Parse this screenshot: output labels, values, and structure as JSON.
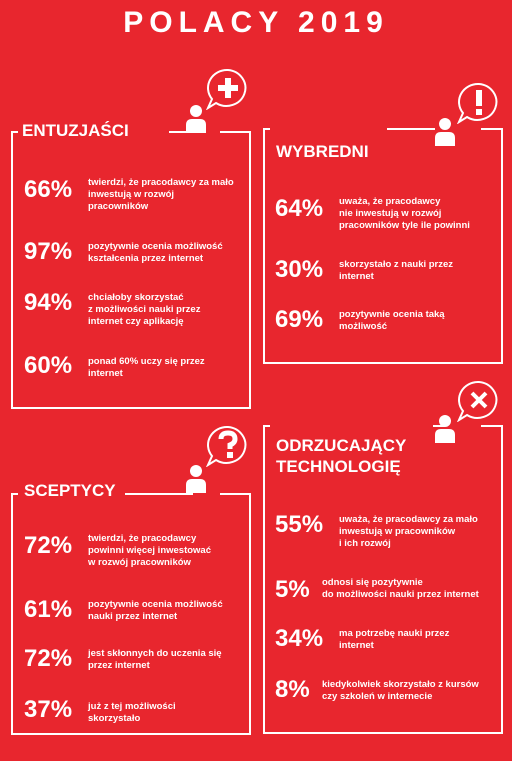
{
  "title": "POLACY 2019",
  "groups": [
    {
      "name": "ENTUZJAŚCI",
      "icon": "plus-icon",
      "items": [
        {
          "pct": "66%",
          "text": "twierdzi, że pracodawcy za mało\ninwestują w rozwój\npracowników"
        },
        {
          "pct": "97%",
          "text": "pozytywnie ocenia możliwość\nkształcenia przez internet"
        },
        {
          "pct": "94%",
          "text": "chciałoby skorzystać\nz możliwości nauki przez\ninternet czy aplikację"
        },
        {
          "pct": "60%",
          "text": "ponad 60% uczy się przez\ninternet"
        }
      ]
    },
    {
      "name": "WYBREDNI",
      "icon": "exclamation-icon",
      "items": [
        {
          "pct": "64%",
          "text": "uważa, że pracodawcy\nnie inwestują w rozwój\npracowników tyle ile powinni"
        },
        {
          "pct": "30%",
          "text": "skorzystało z nauki przez\ninternet"
        },
        {
          "pct": "69%",
          "text": "pozytywnie ocenia taką\nmożliwość"
        }
      ]
    },
    {
      "name": "SCEPTYCY",
      "icon": "question-icon",
      "items": [
        {
          "pct": "72%",
          "text": "twierdzi, że pracodawcy\npowinni więcej inwestować\nw rozwój pracowników"
        },
        {
          "pct": "61%",
          "text": "pozytywnie ocenia możliwość\nnauki przez internet"
        },
        {
          "pct": "72%",
          "text": "jest skłonnych do uczenia się\nprzez internet"
        },
        {
          "pct": "37%",
          "text": "już z tej możliwości\nskorzystało"
        }
      ]
    },
    {
      "name": "ODRZUCAJĄCY\nTECHNOLOGIĘ",
      "icon": "cross-icon",
      "items": [
        {
          "pct": "55%",
          "text": "uważa, że pracodawcy za mało\ninwestują w pracowników\ni ich rozwój"
        },
        {
          "pct": "5%",
          "text": "odnosi się pozytywnie\ndo możliwości nauki przez internet"
        },
        {
          "pct": "34%",
          "text": "ma potrzebę nauki przez\ninternet"
        },
        {
          "pct": "8%",
          "text": "kiedykolwiek skorzystało z kursów\nczy szkoleń w internecie"
        }
      ]
    }
  ]
}
